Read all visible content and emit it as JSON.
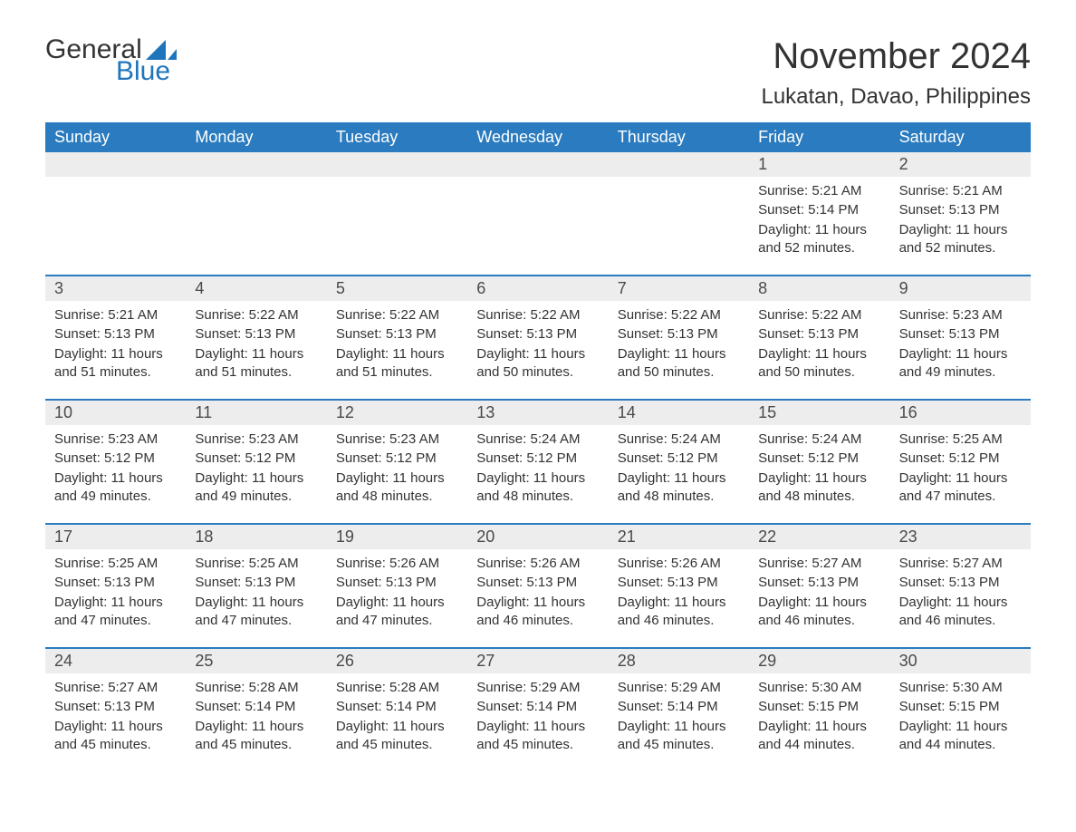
{
  "logo": {
    "text_general": "General",
    "text_blue": "Blue",
    "flag_color": "#1f75bb"
  },
  "title": {
    "month": "November 2024",
    "location": "Lukatan, Davao, Philippines",
    "title_fontsize": 40,
    "location_fontsize": 24,
    "title_color": "#333333"
  },
  "calendar": {
    "type": "table",
    "header_bg": "#2a7bbf",
    "header_text_color": "#ffffff",
    "row_separator_color": "#2a7bbf",
    "daynum_bg": "#ededed",
    "daynum_color": "#4a4a4a",
    "body_text_color": "#333333",
    "background_color": "#ffffff",
    "weekday_fontsize": 18,
    "daynum_fontsize": 18,
    "info_fontsize": 15,
    "weekdays": [
      "Sunday",
      "Monday",
      "Tuesday",
      "Wednesday",
      "Thursday",
      "Friday",
      "Saturday"
    ],
    "weeks": [
      [
        {
          "day": "",
          "sunrise": "",
          "sunset": "",
          "daylight": ""
        },
        {
          "day": "",
          "sunrise": "",
          "sunset": "",
          "daylight": ""
        },
        {
          "day": "",
          "sunrise": "",
          "sunset": "",
          "daylight": ""
        },
        {
          "day": "",
          "sunrise": "",
          "sunset": "",
          "daylight": ""
        },
        {
          "day": "",
          "sunrise": "",
          "sunset": "",
          "daylight": ""
        },
        {
          "day": "1",
          "sunrise": "Sunrise: 5:21 AM",
          "sunset": "Sunset: 5:14 PM",
          "daylight": "Daylight: 11 hours and 52 minutes."
        },
        {
          "day": "2",
          "sunrise": "Sunrise: 5:21 AM",
          "sunset": "Sunset: 5:13 PM",
          "daylight": "Daylight: 11 hours and 52 minutes."
        }
      ],
      [
        {
          "day": "3",
          "sunrise": "Sunrise: 5:21 AM",
          "sunset": "Sunset: 5:13 PM",
          "daylight": "Daylight: 11 hours and 51 minutes."
        },
        {
          "day": "4",
          "sunrise": "Sunrise: 5:22 AM",
          "sunset": "Sunset: 5:13 PM",
          "daylight": "Daylight: 11 hours and 51 minutes."
        },
        {
          "day": "5",
          "sunrise": "Sunrise: 5:22 AM",
          "sunset": "Sunset: 5:13 PM",
          "daylight": "Daylight: 11 hours and 51 minutes."
        },
        {
          "day": "6",
          "sunrise": "Sunrise: 5:22 AM",
          "sunset": "Sunset: 5:13 PM",
          "daylight": "Daylight: 11 hours and 50 minutes."
        },
        {
          "day": "7",
          "sunrise": "Sunrise: 5:22 AM",
          "sunset": "Sunset: 5:13 PM",
          "daylight": "Daylight: 11 hours and 50 minutes."
        },
        {
          "day": "8",
          "sunrise": "Sunrise: 5:22 AM",
          "sunset": "Sunset: 5:13 PM",
          "daylight": "Daylight: 11 hours and 50 minutes."
        },
        {
          "day": "9",
          "sunrise": "Sunrise: 5:23 AM",
          "sunset": "Sunset: 5:13 PM",
          "daylight": "Daylight: 11 hours and 49 minutes."
        }
      ],
      [
        {
          "day": "10",
          "sunrise": "Sunrise: 5:23 AM",
          "sunset": "Sunset: 5:12 PM",
          "daylight": "Daylight: 11 hours and 49 minutes."
        },
        {
          "day": "11",
          "sunrise": "Sunrise: 5:23 AM",
          "sunset": "Sunset: 5:12 PM",
          "daylight": "Daylight: 11 hours and 49 minutes."
        },
        {
          "day": "12",
          "sunrise": "Sunrise: 5:23 AM",
          "sunset": "Sunset: 5:12 PM",
          "daylight": "Daylight: 11 hours and 48 minutes."
        },
        {
          "day": "13",
          "sunrise": "Sunrise: 5:24 AM",
          "sunset": "Sunset: 5:12 PM",
          "daylight": "Daylight: 11 hours and 48 minutes."
        },
        {
          "day": "14",
          "sunrise": "Sunrise: 5:24 AM",
          "sunset": "Sunset: 5:12 PM",
          "daylight": "Daylight: 11 hours and 48 minutes."
        },
        {
          "day": "15",
          "sunrise": "Sunrise: 5:24 AM",
          "sunset": "Sunset: 5:12 PM",
          "daylight": "Daylight: 11 hours and 48 minutes."
        },
        {
          "day": "16",
          "sunrise": "Sunrise: 5:25 AM",
          "sunset": "Sunset: 5:12 PM",
          "daylight": "Daylight: 11 hours and 47 minutes."
        }
      ],
      [
        {
          "day": "17",
          "sunrise": "Sunrise: 5:25 AM",
          "sunset": "Sunset: 5:13 PM",
          "daylight": "Daylight: 11 hours and 47 minutes."
        },
        {
          "day": "18",
          "sunrise": "Sunrise: 5:25 AM",
          "sunset": "Sunset: 5:13 PM",
          "daylight": "Daylight: 11 hours and 47 minutes."
        },
        {
          "day": "19",
          "sunrise": "Sunrise: 5:26 AM",
          "sunset": "Sunset: 5:13 PM",
          "daylight": "Daylight: 11 hours and 47 minutes."
        },
        {
          "day": "20",
          "sunrise": "Sunrise: 5:26 AM",
          "sunset": "Sunset: 5:13 PM",
          "daylight": "Daylight: 11 hours and 46 minutes."
        },
        {
          "day": "21",
          "sunrise": "Sunrise: 5:26 AM",
          "sunset": "Sunset: 5:13 PM",
          "daylight": "Daylight: 11 hours and 46 minutes."
        },
        {
          "day": "22",
          "sunrise": "Sunrise: 5:27 AM",
          "sunset": "Sunset: 5:13 PM",
          "daylight": "Daylight: 11 hours and 46 minutes."
        },
        {
          "day": "23",
          "sunrise": "Sunrise: 5:27 AM",
          "sunset": "Sunset: 5:13 PM",
          "daylight": "Daylight: 11 hours and 46 minutes."
        }
      ],
      [
        {
          "day": "24",
          "sunrise": "Sunrise: 5:27 AM",
          "sunset": "Sunset: 5:13 PM",
          "daylight": "Daylight: 11 hours and 45 minutes."
        },
        {
          "day": "25",
          "sunrise": "Sunrise: 5:28 AM",
          "sunset": "Sunset: 5:14 PM",
          "daylight": "Daylight: 11 hours and 45 minutes."
        },
        {
          "day": "26",
          "sunrise": "Sunrise: 5:28 AM",
          "sunset": "Sunset: 5:14 PM",
          "daylight": "Daylight: 11 hours and 45 minutes."
        },
        {
          "day": "27",
          "sunrise": "Sunrise: 5:29 AM",
          "sunset": "Sunset: 5:14 PM",
          "daylight": "Daylight: 11 hours and 45 minutes."
        },
        {
          "day": "28",
          "sunrise": "Sunrise: 5:29 AM",
          "sunset": "Sunset: 5:14 PM",
          "daylight": "Daylight: 11 hours and 45 minutes."
        },
        {
          "day": "29",
          "sunrise": "Sunrise: 5:30 AM",
          "sunset": "Sunset: 5:15 PM",
          "daylight": "Daylight: 11 hours and 44 minutes."
        },
        {
          "day": "30",
          "sunrise": "Sunrise: 5:30 AM",
          "sunset": "Sunset: 5:15 PM",
          "daylight": "Daylight: 11 hours and 44 minutes."
        }
      ]
    ]
  }
}
